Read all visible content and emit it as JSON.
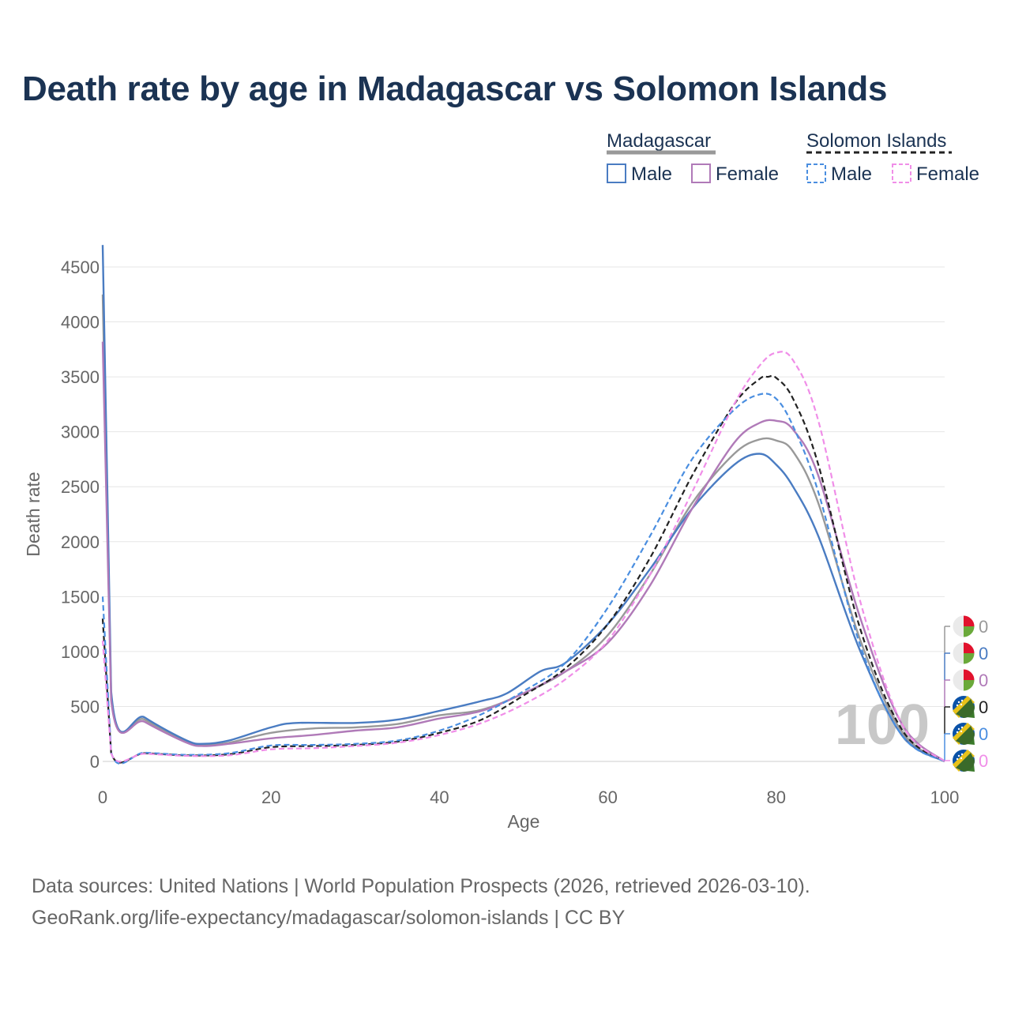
{
  "title": "Death rate by age in Madagascar vs Solomon Islands",
  "source_line1": "Data sources: United Nations | World Population Prospects (2026, retrieved 2026-03-10).",
  "source_line2": "GeoRank.org/life-expectancy/madagascar/solomon-islands | CC BY",
  "legend": {
    "groups": [
      {
        "name": "Madagascar",
        "line_color": "#999999",
        "dashed": false,
        "items": [
          {
            "label": "Male",
            "color": "#4a7cc2"
          },
          {
            "label": "Female",
            "color": "#b07ab8"
          }
        ]
      },
      {
        "name": "Solomon Islands",
        "line_color": "#222222",
        "dashed": true,
        "items": [
          {
            "label": "Male",
            "color": "#4a8ee0"
          },
          {
            "label": "Female",
            "color": "#f08ee8"
          }
        ]
      }
    ]
  },
  "age_indicator": "100",
  "end_labels": [
    {
      "value": "0",
      "color": "#999999",
      "flag": "madagascar-flag"
    },
    {
      "value": "0",
      "color": "#4a7cc2",
      "flag": "madagascar-flag"
    },
    {
      "value": "0",
      "color": "#b07ab8",
      "flag": "madagascar-flag"
    },
    {
      "value": "0",
      "color": "#222222",
      "flag": "solomon-islands-flag"
    },
    {
      "value": "0",
      "color": "#4a8ee0",
      "flag": "solomon-islands-flag"
    },
    {
      "value": "0",
      "color": "#f08ee8",
      "flag": "solomon-islands-flag"
    }
  ],
  "chart_data": {
    "type": "line",
    "title": "Death rate by age in Madagascar vs Solomon Islands",
    "xlabel": "Age",
    "ylabel": "Death rate",
    "xlim": [
      0,
      100
    ],
    "ylim": [
      0,
      4500
    ],
    "xticks": [
      0,
      20,
      40,
      60,
      80,
      100
    ],
    "yticks": [
      0,
      500,
      1000,
      1500,
      2000,
      2500,
      3000,
      3500,
      4000,
      4500
    ],
    "grid": true,
    "series": [
      {
        "name": "Madagascar (total)",
        "color": "#999999",
        "dashed": false,
        "x": [
          0,
          1,
          5,
          10,
          12,
          15,
          20,
          25,
          30,
          35,
          40,
          45,
          50,
          55,
          60,
          65,
          70,
          75,
          78,
          80,
          82,
          85,
          90,
          95,
          100
        ],
        "y": [
          4250,
          600,
          380,
          180,
          150,
          170,
          260,
          300,
          310,
          340,
          420,
          470,
          620,
          820,
          1150,
          1700,
          2350,
          2800,
          2930,
          2920,
          2820,
          2350,
          1100,
          260,
          0
        ]
      },
      {
        "name": "Madagascar Male",
        "color": "#4a7cc2",
        "dashed": false,
        "x": [
          0,
          1,
          5,
          10,
          12,
          15,
          20,
          23,
          30,
          35,
          40,
          45,
          48,
          52,
          55,
          60,
          65,
          70,
          75,
          78,
          80,
          82,
          85,
          90,
          95,
          100
        ],
        "y": [
          4700,
          640,
          400,
          190,
          160,
          190,
          310,
          350,
          350,
          380,
          460,
          550,
          620,
          820,
          900,
          1250,
          1750,
          2300,
          2700,
          2800,
          2700,
          2500,
          2050,
          1000,
          230,
          0
        ]
      },
      {
        "name": "Madagascar Female",
        "color": "#b07ab8",
        "dashed": false,
        "x": [
          0,
          1,
          5,
          10,
          12,
          15,
          20,
          25,
          30,
          35,
          40,
          45,
          50,
          55,
          60,
          65,
          70,
          75,
          78,
          80,
          82,
          85,
          90,
          95,
          100
        ],
        "y": [
          3820,
          560,
          360,
          170,
          140,
          160,
          210,
          240,
          280,
          310,
          390,
          460,
          620,
          820,
          1080,
          1600,
          2300,
          2900,
          3080,
          3100,
          3020,
          2600,
          1300,
          330,
          0
        ]
      },
      {
        "name": "Solomon Islands (total)",
        "color": "#222222",
        "dashed": true,
        "x": [
          0,
          1,
          5,
          10,
          15,
          20,
          25,
          30,
          35,
          40,
          45,
          50,
          55,
          60,
          65,
          70,
          75,
          78,
          79,
          80,
          82,
          85,
          90,
          95,
          100
        ],
        "y": [
          1300,
          80,
          75,
          55,
          65,
          130,
          140,
          150,
          180,
          260,
          380,
          600,
          850,
          1250,
          1850,
          2600,
          3250,
          3480,
          3500,
          3490,
          3300,
          2700,
          1200,
          280,
          0
        ]
      },
      {
        "name": "Solomon Islands Male",
        "color": "#4a8ee0",
        "dashed": true,
        "x": [
          0,
          1,
          5,
          10,
          15,
          20,
          25,
          30,
          35,
          40,
          45,
          50,
          55,
          60,
          65,
          70,
          75,
          78,
          80,
          82,
          85,
          90,
          95,
          100
        ],
        "y": [
          1500,
          85,
          80,
          60,
          75,
          145,
          150,
          160,
          190,
          280,
          430,
          640,
          900,
          1400,
          2050,
          2750,
          3200,
          3340,
          3300,
          3050,
          2450,
          1050,
          230,
          0
        ]
      },
      {
        "name": "Solomon Islands Female",
        "color": "#f08ee8",
        "dashed": true,
        "x": [
          0,
          1,
          5,
          10,
          15,
          20,
          25,
          30,
          35,
          40,
          45,
          50,
          55,
          60,
          65,
          70,
          75,
          78,
          80,
          82,
          85,
          90,
          95,
          100
        ],
        "y": [
          1100,
          75,
          70,
          50,
          55,
          110,
          120,
          140,
          170,
          240,
          350,
          520,
          750,
          1100,
          1700,
          2450,
          3250,
          3600,
          3720,
          3650,
          3100,
          1450,
          330,
          0
        ]
      }
    ]
  }
}
